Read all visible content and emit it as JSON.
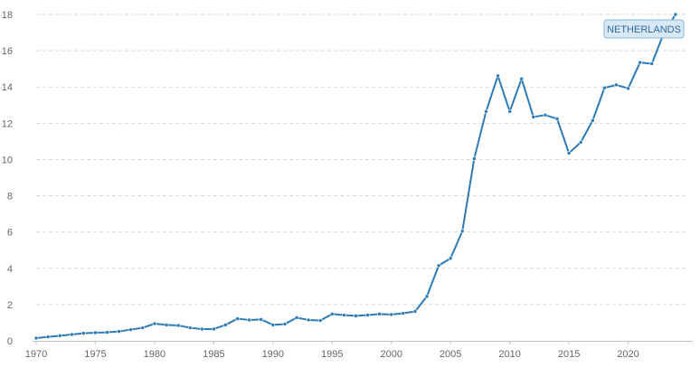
{
  "chart_data": {
    "type": "line",
    "title": "",
    "xlabel": "",
    "ylabel": "",
    "xlim": [
      1970,
      2025
    ],
    "ylim": [
      0,
      18
    ],
    "x_ticks": [
      1970,
      1975,
      1980,
      1985,
      1990,
      1995,
      2000,
      2005,
      2010,
      2015,
      2020
    ],
    "y_ticks": [
      0,
      2,
      4,
      6,
      8,
      10,
      12,
      14,
      16,
      18
    ],
    "grid": true,
    "series": [
      {
        "name": "NETHERLANDS",
        "color": "#2c7bb6",
        "x": [
          1970,
          1971,
          1972,
          1973,
          1974,
          1975,
          1976,
          1977,
          1978,
          1979,
          1980,
          1981,
          1982,
          1983,
          1984,
          1985,
          1986,
          1987,
          1988,
          1989,
          1990,
          1991,
          1992,
          1993,
          1994,
          1995,
          1996,
          1997,
          1998,
          1999,
          2000,
          2001,
          2002,
          2003,
          2004,
          2005,
          2006,
          2007,
          2008,
          2009,
          2010,
          2011,
          2012,
          2013,
          2014,
          2015,
          2016,
          2017,
          2018,
          2019,
          2020,
          2021,
          2022,
          2023,
          2024
        ],
        "values": [
          0.15,
          0.22,
          0.28,
          0.35,
          0.42,
          0.45,
          0.47,
          0.52,
          0.62,
          0.72,
          0.95,
          0.88,
          0.85,
          0.72,
          0.65,
          0.65,
          0.88,
          1.22,
          1.15,
          1.18,
          0.88,
          0.92,
          1.28,
          1.15,
          1.12,
          1.48,
          1.42,
          1.38,
          1.42,
          1.48,
          1.45,
          1.52,
          1.62,
          2.45,
          4.15,
          4.55,
          6.05,
          10.05,
          12.65,
          14.62,
          12.65,
          14.45,
          12.35,
          12.45,
          12.25,
          10.35,
          10.95,
          12.15,
          13.95,
          14.12,
          13.92,
          15.35,
          15.28,
          16.95,
          18.0
        ]
      }
    ],
    "legend": {
      "label": "NETHERLANDS",
      "placement": "top-right"
    }
  }
}
